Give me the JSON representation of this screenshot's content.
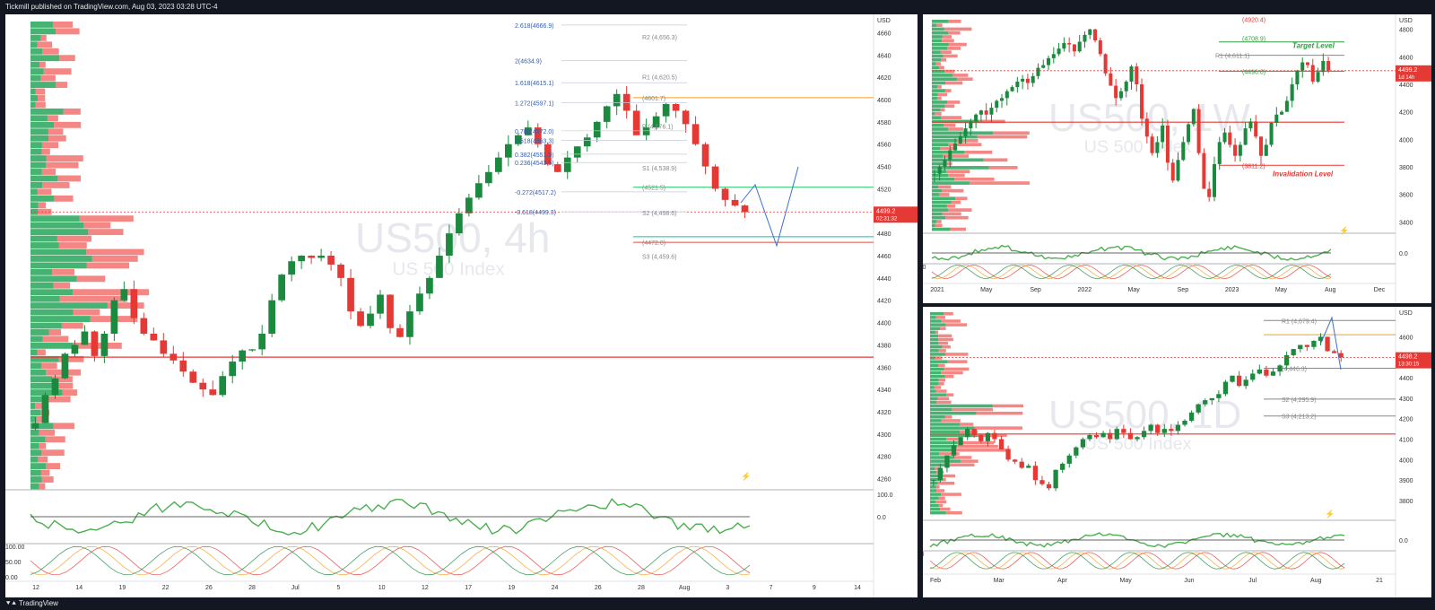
{
  "header_text": "Tickmill published on TradingView.com, Aug 03, 2023 03:28 UTC-4",
  "footer_brand": "TradingView",
  "chart_data": [
    {
      "type": "candlestick",
      "watermark": "US500, 4h",
      "watermark_sub": "US 500 Index",
      "currency": "USD",
      "price_label": "4499.2",
      "countdown": "02:31:32",
      "ylim": [
        4250,
        4670
      ],
      "y_ticks": [
        4660,
        4640,
        4620,
        4600,
        4580,
        4560,
        4540,
        4520,
        4500,
        4480,
        4460,
        4440,
        4420,
        4400,
        4380,
        4360,
        4340,
        4320,
        4300,
        4280,
        4260
      ],
      "x_ticks": [
        "12",
        "14",
        "19",
        "22",
        "26",
        "28",
        "Jul",
        "5",
        "10",
        "12",
        "17",
        "19",
        "24",
        "26",
        "28",
        "Aug",
        "3",
        "7",
        "9",
        "14"
      ],
      "fib_labels": [
        "2.618(4666.9)",
        "2(4634.9)",
        "1.618(4615.1)",
        "1.272(4597.1)",
        "0.786(4572.0)",
        "0.618(4563.3)",
        "0.382(4551.0)",
        "0.236(4543.5)",
        "-0.272(4517.2)",
        "-0.618(4499.3)"
      ],
      "pivot_labels": [
        "R2 (4,656.3)",
        "R1 (4,620.5)",
        "(4601.7)",
        "P (4,576.1)",
        "S1 (4,538.9)",
        "(4521.5)",
        "S2 (4,498.6)",
        "(4472.0)",
        "S3 (4,459.6)"
      ],
      "level_prices": {
        "orange": 4601.7,
        "green": 4521.5,
        "teal": 4477.0,
        "red": 4472.0,
        "poc": 4369.0
      },
      "rsi_ticks": [
        "100.0",
        "0.0"
      ],
      "stoch_ticks": [
        "100.00",
        "50.00",
        "0.00"
      ],
      "close_path": [
        4310,
        4335,
        4350,
        4372,
        4380,
        4392,
        4370,
        4390,
        4420,
        4430,
        4404,
        4390,
        4384,
        4372,
        4366,
        4356,
        4346,
        4340,
        4335,
        4352,
        4365,
        4375,
        4376,
        4390,
        4420,
        4443,
        4455,
        4460,
        4458,
        4460,
        4452,
        4440,
        4410,
        4397,
        4408,
        4425,
        4395,
        4387,
        4410,
        4426,
        4440,
        4460,
        4480,
        4498,
        4512,
        4525,
        4535,
        4548,
        4560,
        4568,
        4575,
        4560,
        4542,
        4535,
        4548,
        4558,
        4566,
        4580,
        4594,
        4605,
        4590,
        4568,
        4575,
        4585,
        4596,
        4590,
        4578,
        4560,
        4540,
        4520,
        4510,
        4505,
        4499
      ]
    },
    {
      "type": "candlestick",
      "watermark": "US500, 1W",
      "watermark_sub": "US 500 Index",
      "currency": "USD",
      "price_label": "4499.2",
      "countdown": "1d 14h",
      "ylim": [
        3330,
        4870
      ],
      "y_ticks": [
        4800,
        4600,
        4400,
        4200,
        4000,
        3800,
        3600,
        3400
      ],
      "x_ticks": [
        "2021",
        "May",
        "Sep",
        "2022",
        "May",
        "Sep",
        "2023",
        "May",
        "Aug",
        "Dec"
      ],
      "levels": {
        "r1": "R1 (4,611.1)",
        "target_value": "(4708.9)",
        "target": "Target Level",
        "top": "(4920.4)",
        "mid": "(4496.0)",
        "invalidation": "Invalidation Level",
        "inv_value": "(3811.2)"
      },
      "level_prices": {
        "top": 4920.4,
        "target": 4708.9,
        "r1": 4611.1,
        "mid": 4496.0,
        "inv": 3811.2,
        "poc": 4125
      },
      "rsi_ticks": [
        "0.0"
      ],
      "stoch_ticks": [
        "100.00",
        "0.00"
      ],
      "close_path": [
        3750,
        3800,
        3850,
        3920,
        3970,
        4020,
        4080,
        4130,
        4180,
        4210,
        4180,
        4230,
        4280,
        4300,
        4350,
        4380,
        4420,
        4440,
        4410,
        4460,
        4520,
        4540,
        4590,
        4620,
        4660,
        4700,
        4690,
        4640,
        4710,
        4760,
        4800,
        4720,
        4620,
        4480,
        4390,
        4300,
        4350,
        4420,
        4530,
        4400,
        4150,
        4020,
        3900,
        3980,
        4100,
        3830,
        3700,
        3850,
        3980,
        4110,
        4220,
        3900,
        3640,
        3580,
        3820,
        3980,
        4050,
        3960,
        3880,
        3960,
        4080,
        4130,
        4020,
        3880,
        3960,
        4120,
        4180,
        4200,
        4280,
        4400,
        4500,
        4560,
        4540,
        4420,
        4490,
        4570,
        4500
      ]
    },
    {
      "type": "candlestick",
      "watermark": "US500, 1D",
      "watermark_sub": "US 500 Index",
      "currency": "USD",
      "price_label": "4498.2",
      "countdown": "13:30:15",
      "ylim": [
        3730,
        4720
      ],
      "y_ticks": [
        4600,
        4500,
        4400,
        4300,
        4200,
        4100,
        4000,
        3900,
        3800
      ],
      "x_ticks": [
        "Feb",
        "Mar",
        "Apr",
        "May",
        "Jun",
        "Jul",
        "Aug",
        "21"
      ],
      "pivot_labels": [
        "R1 (4,679.4)",
        "(4,446.3)",
        "S2 (4,295.9)",
        "S3 (4,213.2)"
      ],
      "level_prices": {
        "r1": 4679.4,
        "orange": 4610,
        "p": 4446.3,
        "s2": 4295.9,
        "s3": 4213.2,
        "poc": 4125
      },
      "rsi_ticks": [
        "0.0"
      ],
      "stoch_ticks": [
        "100.00",
        "0.00"
      ],
      "close_path": [
        3900,
        3960,
        4020,
        4070,
        4110,
        4150,
        4120,
        4090,
        4130,
        4100,
        4050,
        4000,
        3990,
        3960,
        3970,
        3900,
        3880,
        3860,
        3950,
        3980,
        4020,
        4060,
        4100,
        4120,
        4110,
        4130,
        4100,
        4150,
        4130,
        4100,
        4110,
        4140,
        4170,
        4130,
        4150,
        4140,
        4170,
        4190,
        4230,
        4270,
        4290,
        4300,
        4320,
        4380,
        4410,
        4360,
        4390,
        4420,
        4440,
        4410,
        4430,
        4460,
        4510,
        4540,
        4560,
        4550,
        4580,
        4600,
        4530,
        4520,
        4499
      ]
    }
  ]
}
